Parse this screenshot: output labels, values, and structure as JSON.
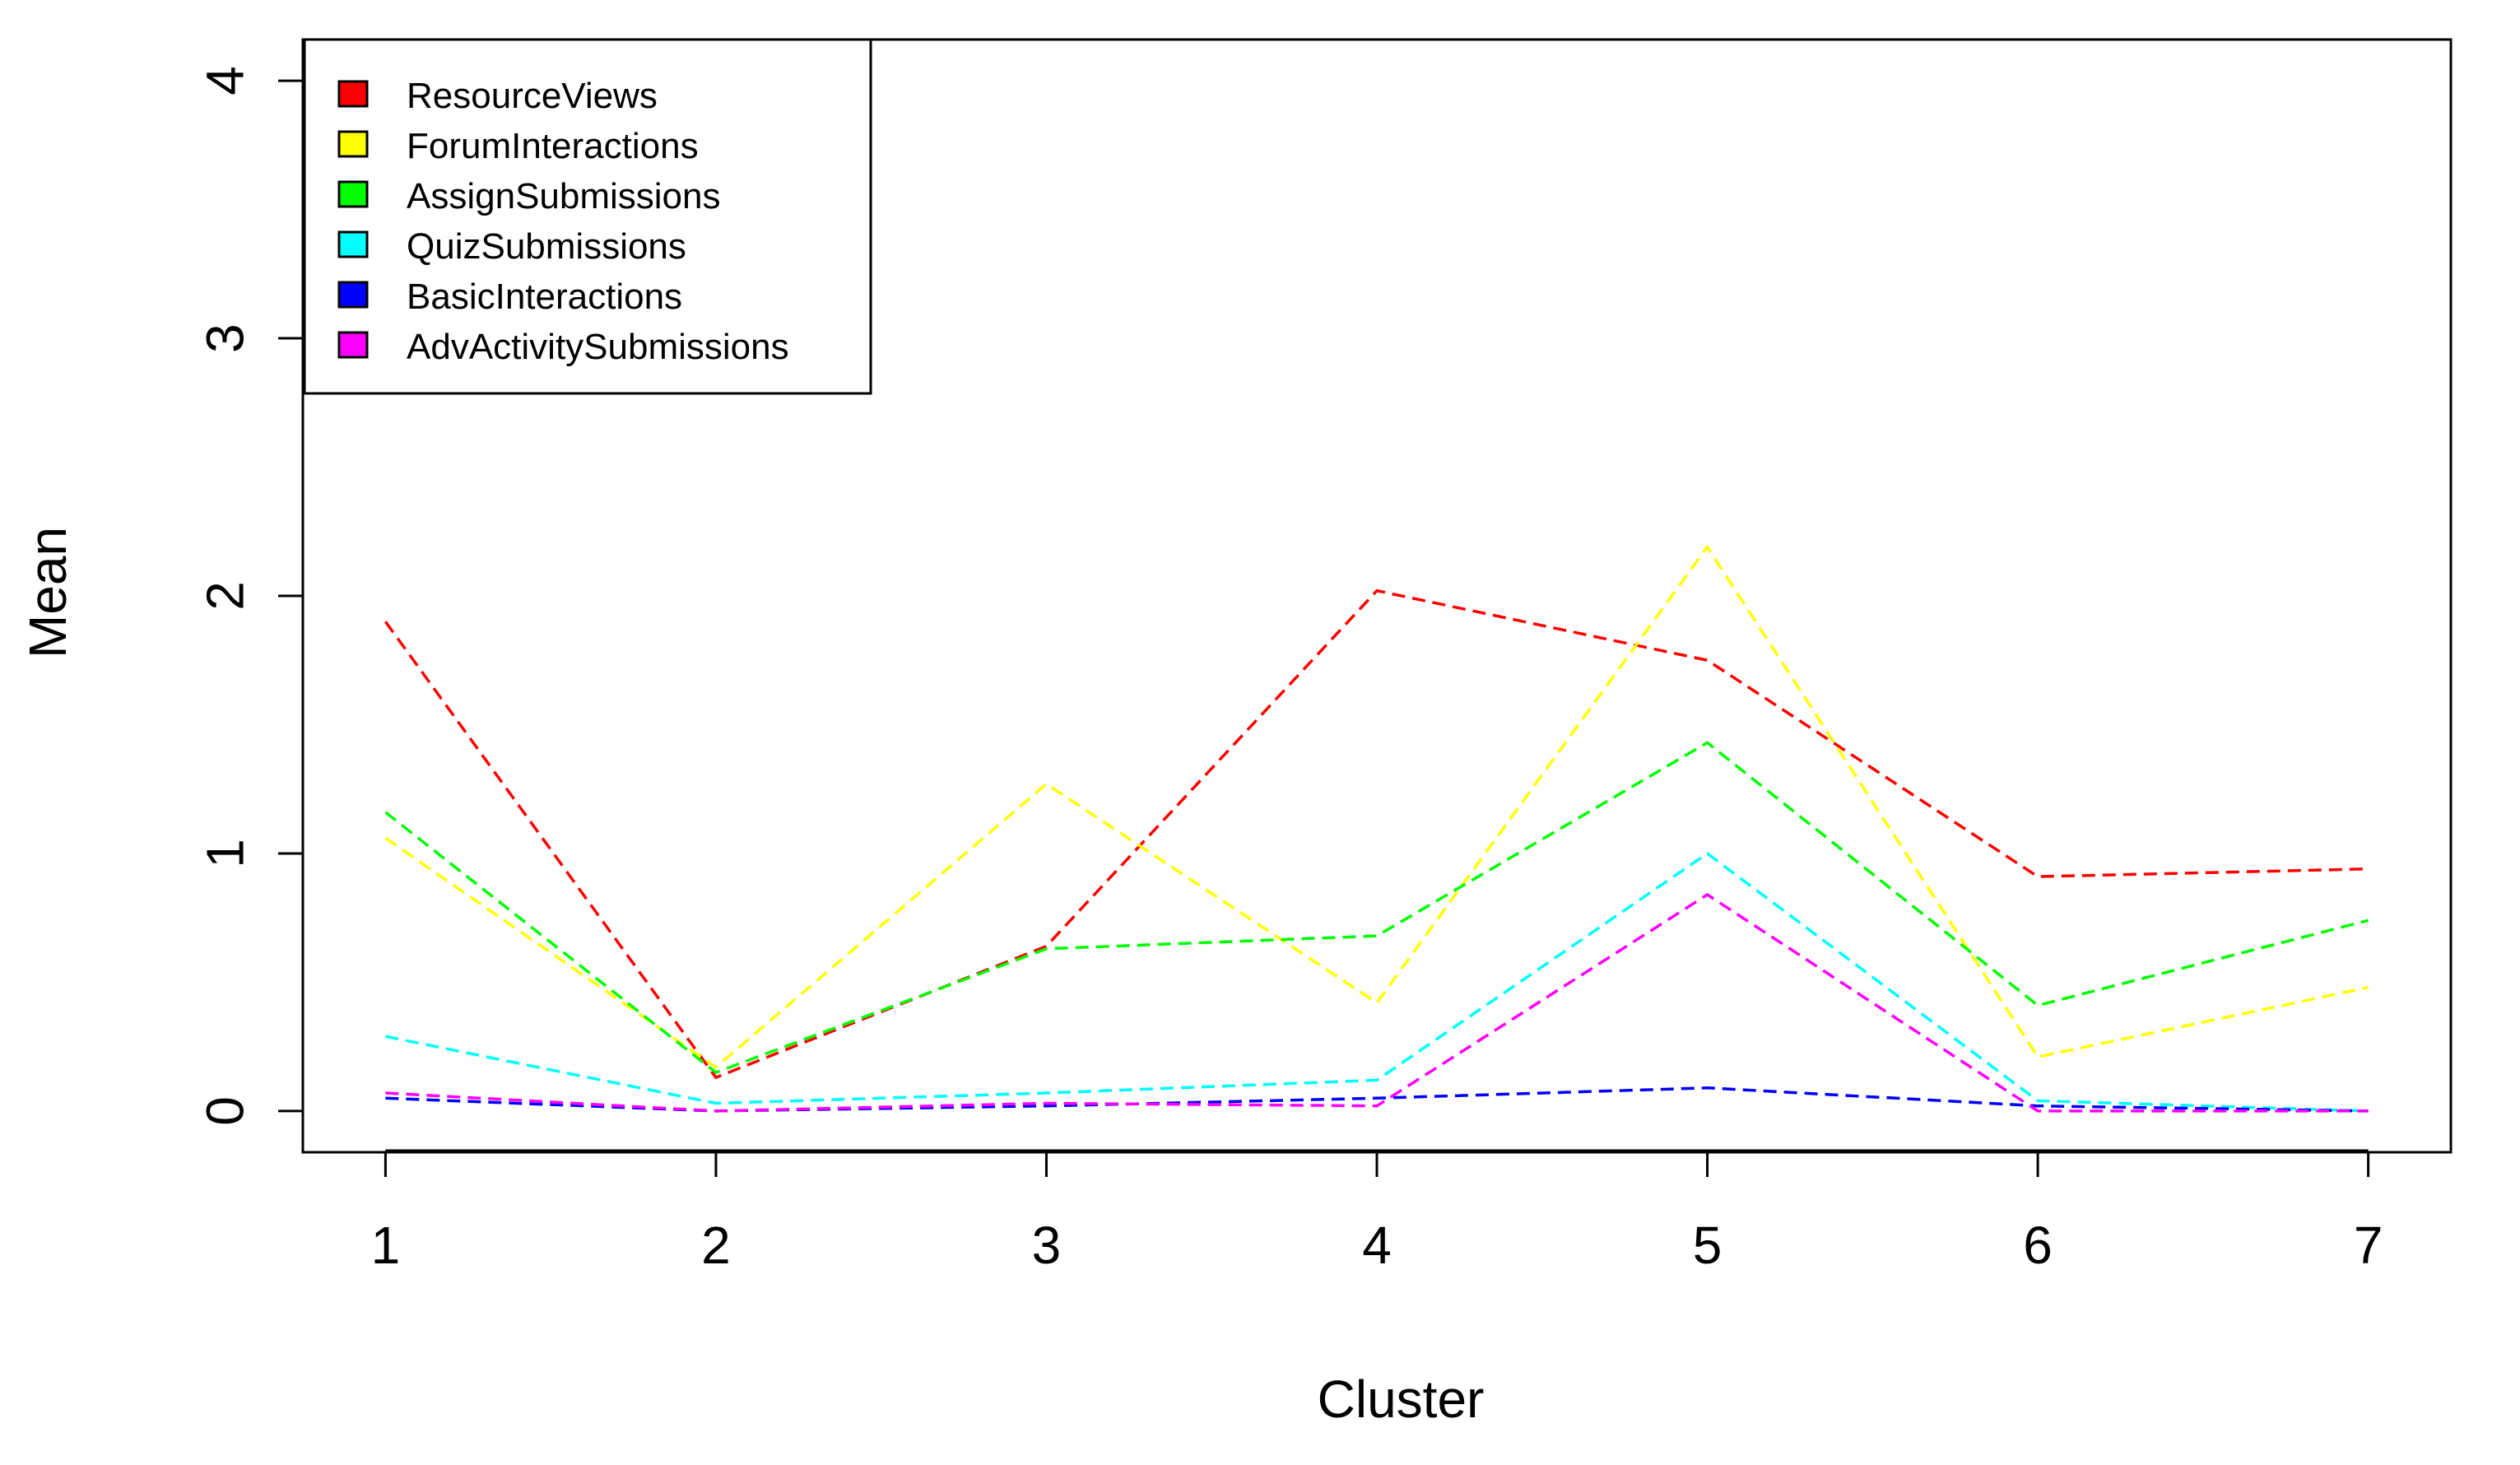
{
  "chart_data": {
    "type": "line",
    "xlabel": "Cluster",
    "ylabel": "Mean",
    "x": [
      1,
      2,
      3,
      4,
      5,
      6,
      7
    ],
    "xlim": [
      0.75,
      7.25
    ],
    "ylim": [
      -0.16,
      4.16
    ],
    "x_ticks": [
      "1",
      "2",
      "3",
      "4",
      "5",
      "6",
      "7"
    ],
    "y_ticks": [
      "0",
      "1",
      "2",
      "3",
      "4"
    ],
    "legend_position": "top-left",
    "grid": false,
    "line_style": "dashed",
    "series": [
      {
        "name": "ResourceViews",
        "color": "#ff0000",
        "values": [
          1.9,
          0.13,
          0.64,
          2.02,
          1.75,
          0.91,
          0.94
        ]
      },
      {
        "name": "ForumInteractions",
        "color": "#ffff00",
        "values": [
          1.06,
          0.17,
          1.27,
          0.42,
          2.19,
          0.21,
          0.48
        ]
      },
      {
        "name": "AssignSubmissions",
        "color": "#00ff00",
        "values": [
          1.16,
          0.15,
          0.63,
          0.68,
          1.43,
          0.41,
          0.74
        ]
      },
      {
        "name": "QuizSubmissions",
        "color": "#00ffff",
        "values": [
          0.29,
          0.03,
          0.07,
          0.12,
          1.0,
          0.04,
          0.0
        ]
      },
      {
        "name": "BasicInteractions",
        "color": "#0000ff",
        "values": [
          0.05,
          0.0,
          0.02,
          0.05,
          0.09,
          0.02,
          0.0
        ]
      },
      {
        "name": "AdvActivitySubmissions",
        "color": "#ff00ff",
        "values": [
          0.07,
          0.0,
          0.03,
          0.02,
          0.84,
          0.0,
          0.0
        ]
      }
    ]
  }
}
